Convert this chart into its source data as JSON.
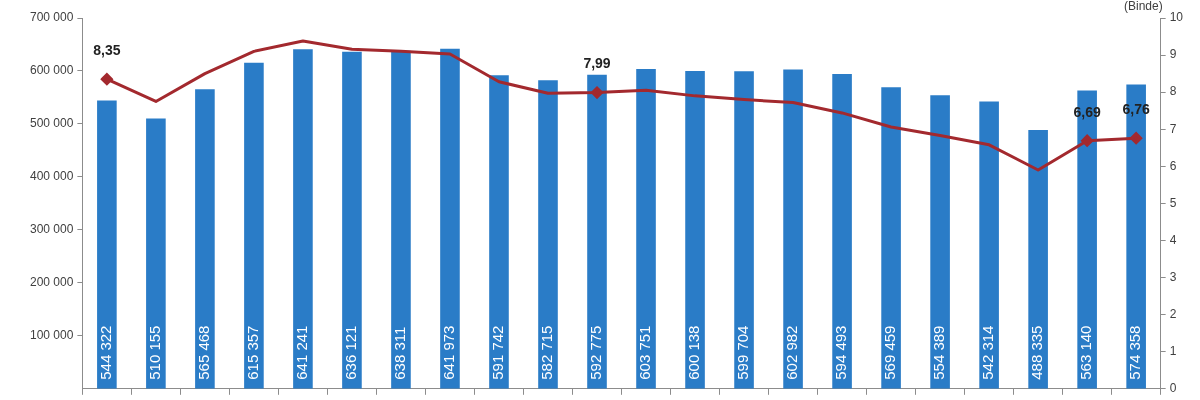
{
  "chart_data": {
    "type": "bar",
    "categories": [
      null,
      null,
      null,
      null,
      null,
      null,
      null,
      null,
      null,
      null,
      null,
      null,
      null,
      null,
      null,
      null,
      null,
      null,
      null,
      null,
      null,
      null
    ],
    "series": [
      {
        "color": "#2a7cc7",
        "values": [
          544322,
          510155,
          565468,
          615357,
          641241,
          636121,
          638311,
          641973,
          591742,
          582715,
          592775,
          603751,
          600138,
          599704,
          602982,
          594493,
          569459,
          554389,
          542314,
          488335,
          563140,
          574358
        ],
        "value_labels": [
          "544 322",
          "510 155",
          "565 468",
          "615 357",
          "641 241",
          "636 121",
          "638 311",
          "641 973",
          "591 742",
          "582 715",
          "592 775",
          "603 751",
          "600 138",
          "599 704",
          "602 982",
          "594 493",
          "569 459",
          "554 389",
          "542 314",
          "488 335",
          "563 140",
          "574 358"
        ]
      },
      {
        "type": "line",
        "axis": "y2",
        "color": "#a3292e",
        "values": [
          8.35,
          7.75,
          8.5,
          9.1,
          9.38,
          9.16,
          9.1,
          9.03,
          8.28,
          7.97,
          7.99,
          8.05,
          7.9,
          7.8,
          7.72,
          7.44,
          7.06,
          6.83,
          6.58,
          5.9,
          6.69,
          6.76
        ],
        "value_labels": [
          "8,35",
          null,
          null,
          null,
          null,
          null,
          null,
          null,
          null,
          null,
          "7,99",
          null,
          null,
          null,
          null,
          null,
          null,
          null,
          null,
          null,
          "6,69",
          "6,76"
        ]
      }
    ],
    "ylim": [
      0,
      700000
    ],
    "yticks": [
      {
        "value": 100000,
        "label": "100 000"
      },
      {
        "value": 200000,
        "label": "200 000"
      },
      {
        "value": 300000,
        "label": "300 000"
      },
      {
        "value": 400000,
        "label": "400 000"
      },
      {
        "value": 500000,
        "label": "500 000"
      },
      {
        "value": 600000,
        "label": "600 000"
      },
      {
        "value": 700000,
        "label": "700 000"
      }
    ],
    "y2label": "(Binde)",
    "y2lim": [
      0,
      10
    ],
    "y2ticks": [
      0,
      1,
      2,
      3,
      4,
      5,
      6,
      7,
      8,
      9,
      10
    ],
    "grid": false,
    "legend": false
  }
}
